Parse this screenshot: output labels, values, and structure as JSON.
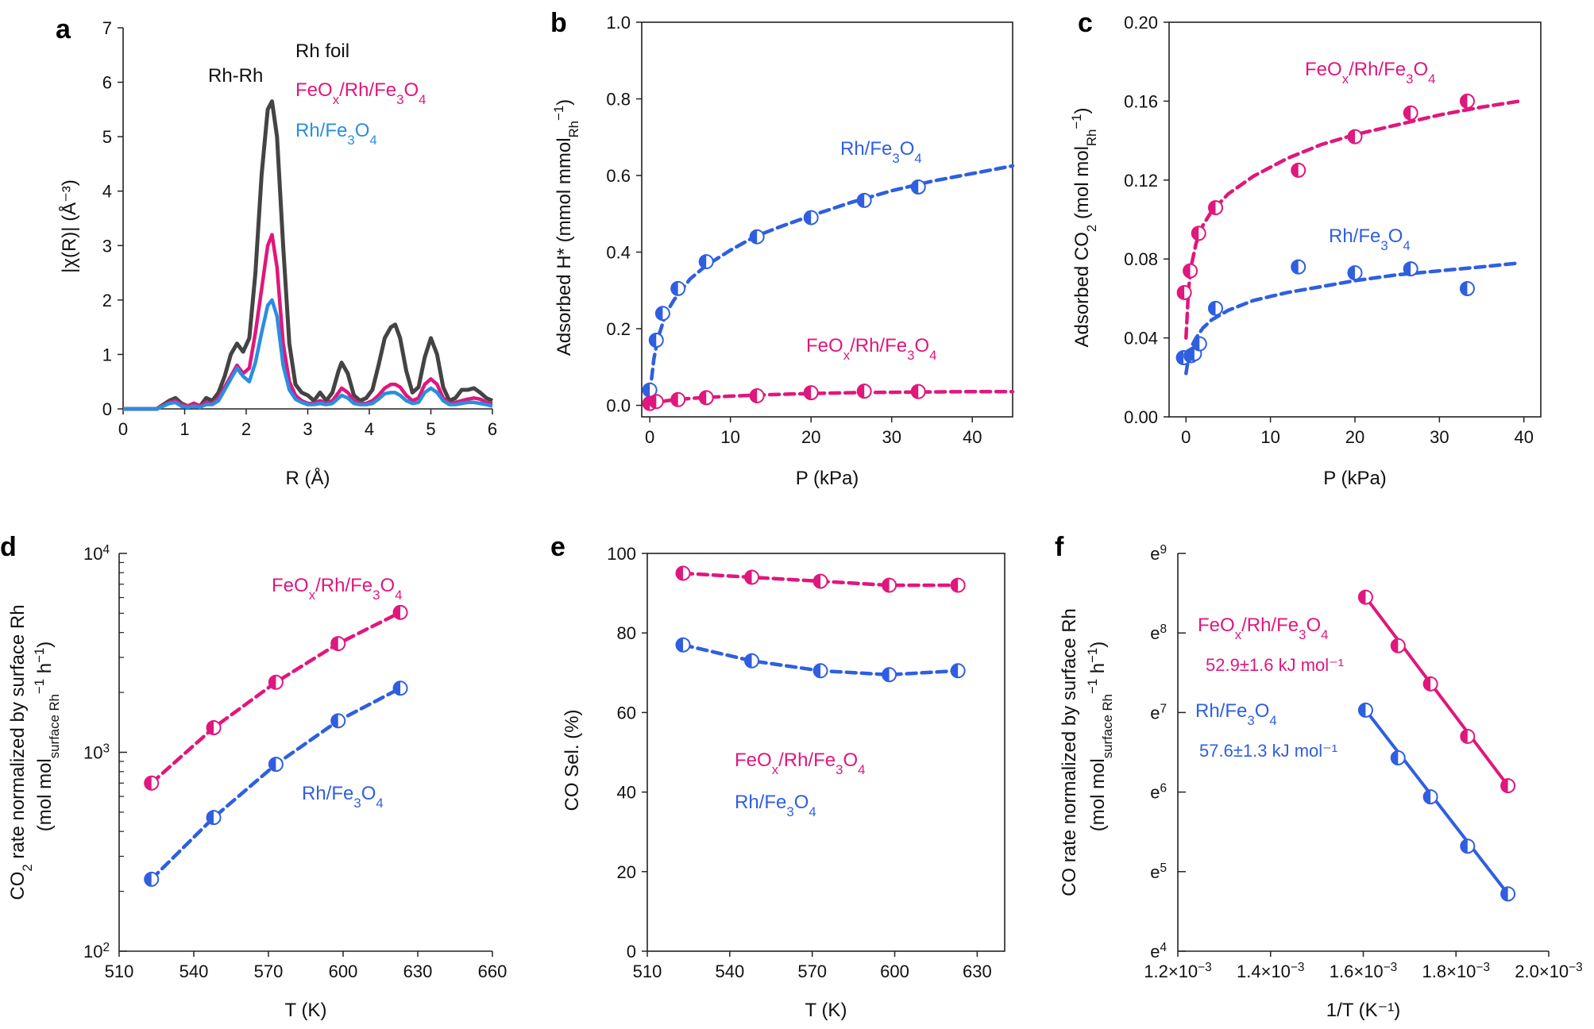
{
  "colors": {
    "pink": "#e0177c",
    "blue": "#2f5fe0",
    "lightblue": "#2a8ee0",
    "gray": "#444444"
  },
  "chart_data": [
    {
      "panel": "a",
      "type": "line",
      "xlabel": "R (Å)",
      "ylabel": "|χ(R)| (Å⁻³)",
      "xlim": [
        0,
        6
      ],
      "ylim": [
        0,
        7
      ],
      "xticks": [
        "0",
        "1",
        "2",
        "3",
        "4",
        "5",
        "6"
      ],
      "yticks": [
        "0",
        "1",
        "2",
        "3",
        "4",
        "5",
        "6",
        "7"
      ],
      "annotations": [
        {
          "text": "Rh-Rh"
        }
      ],
      "series": [
        {
          "name": "Rh foil",
          "color": "#444444",
          "x": [
            0,
            0.55,
            0.75,
            0.85,
            0.95,
            1.05,
            1.15,
            1.25,
            1.35,
            1.45,
            1.55,
            1.65,
            1.75,
            1.85,
            1.95,
            2.05,
            2.15,
            2.25,
            2.35,
            2.42,
            2.5,
            2.6,
            2.7,
            2.8,
            2.9,
            3.0,
            3.1,
            3.2,
            3.3,
            3.4,
            3.5,
            3.55,
            3.65,
            3.75,
            3.85,
            3.95,
            4.05,
            4.15,
            4.25,
            4.35,
            4.42,
            4.5,
            4.6,
            4.7,
            4.8,
            4.9,
            5.0,
            5.1,
            5.2,
            5.3,
            5.4,
            5.5,
            5.6,
            5.7,
            5.8,
            5.9,
            6.0
          ],
          "y": [
            0,
            0,
            0.15,
            0.2,
            0.1,
            0.05,
            0.1,
            0.05,
            0.2,
            0.15,
            0.3,
            0.6,
            1.0,
            1.2,
            1.05,
            1.3,
            2.5,
            4.3,
            5.5,
            5.65,
            5.0,
            3.0,
            1.2,
            0.45,
            0.3,
            0.25,
            0.15,
            0.3,
            0.15,
            0.3,
            0.7,
            0.85,
            0.65,
            0.25,
            0.15,
            0.2,
            0.35,
            0.8,
            1.3,
            1.5,
            1.55,
            1.3,
            0.7,
            0.3,
            0.4,
            0.95,
            1.3,
            1.0,
            0.4,
            0.15,
            0.2,
            0.35,
            0.35,
            0.38,
            0.3,
            0.2,
            0.15
          ]
        },
        {
          "name": "FeOx/Rh/Fe3O4",
          "color": "#e0177c",
          "x": [
            0,
            0.55,
            0.75,
            0.85,
            0.95,
            1.05,
            1.15,
            1.25,
            1.35,
            1.45,
            1.55,
            1.65,
            1.75,
            1.85,
            1.95,
            2.05,
            2.15,
            2.25,
            2.35,
            2.42,
            2.5,
            2.6,
            2.7,
            2.8,
            2.9,
            3.0,
            3.1,
            3.2,
            3.3,
            3.4,
            3.5,
            3.55,
            3.65,
            3.75,
            3.85,
            3.95,
            4.05,
            4.15,
            4.25,
            4.35,
            4.42,
            4.5,
            4.6,
            4.7,
            4.8,
            4.9,
            5.0,
            5.1,
            5.2,
            5.3,
            5.4,
            5.5,
            5.6,
            5.7,
            5.8,
            5.9,
            6.0
          ],
          "y": [
            0,
            0,
            0.12,
            0.15,
            0.08,
            0.05,
            0.1,
            0.05,
            0.12,
            0.1,
            0.2,
            0.4,
            0.6,
            0.8,
            0.65,
            0.75,
            1.4,
            2.2,
            3.0,
            3.2,
            2.6,
            1.2,
            0.5,
            0.25,
            0.15,
            0.1,
            0.1,
            0.15,
            0.1,
            0.15,
            0.3,
            0.38,
            0.3,
            0.15,
            0.1,
            0.1,
            0.15,
            0.25,
            0.38,
            0.45,
            0.45,
            0.4,
            0.25,
            0.15,
            0.2,
            0.45,
            0.55,
            0.45,
            0.2,
            0.1,
            0.12,
            0.15,
            0.18,
            0.2,
            0.18,
            0.12,
            0.1
          ]
        },
        {
          "name": "Rh/Fe3O4",
          "color": "#2a8ee0",
          "x": [
            0,
            0.55,
            0.75,
            0.85,
            0.95,
            1.05,
            1.15,
            1.25,
            1.35,
            1.45,
            1.55,
            1.65,
            1.75,
            1.85,
            1.95,
            2.05,
            2.15,
            2.25,
            2.35,
            2.42,
            2.5,
            2.6,
            2.7,
            2.8,
            2.9,
            3.0,
            3.1,
            3.2,
            3.3,
            3.4,
            3.5,
            3.55,
            3.65,
            3.75,
            3.85,
            3.95,
            4.05,
            4.15,
            4.25,
            4.35,
            4.42,
            4.5,
            4.6,
            4.7,
            4.8,
            4.9,
            5.0,
            5.1,
            5.2,
            5.3,
            5.4,
            5.5,
            5.6,
            5.7,
            5.8,
            5.9,
            6.0
          ],
          "y": [
            0,
            0,
            0.1,
            0.12,
            0.05,
            0.03,
            0.05,
            0.03,
            0.08,
            0.08,
            0.15,
            0.35,
            0.55,
            0.75,
            0.6,
            0.5,
            0.85,
            1.4,
            1.9,
            2.0,
            1.7,
            0.8,
            0.35,
            0.18,
            0.12,
            0.08,
            0.08,
            0.1,
            0.08,
            0.1,
            0.2,
            0.25,
            0.2,
            0.1,
            0.08,
            0.08,
            0.1,
            0.18,
            0.28,
            0.3,
            0.3,
            0.25,
            0.15,
            0.1,
            0.12,
            0.3,
            0.38,
            0.3,
            0.15,
            0.08,
            0.08,
            0.1,
            0.12,
            0.12,
            0.1,
            0.08,
            0.05
          ]
        }
      ]
    },
    {
      "panel": "b",
      "type": "scatter",
      "xlabel": "P (kPa)",
      "ylabel": "Adsorbed H* (mmol mmol",
      "ylabel_sub": "Rh",
      "ylabel_end": "−1",
      "xlim": [
        -1,
        45
      ],
      "ylim": [
        0,
        1.0
      ],
      "xticks": [
        "0",
        "10",
        "20",
        "30",
        "40"
      ],
      "yticks": [
        "0.0",
        "0.2",
        "0.4",
        "0.6",
        "0.8",
        "1.0"
      ],
      "series": [
        {
          "name": "Rh/Fe3O4",
          "color": "#2f5fe0",
          "x": [
            0,
            0.8,
            1.6,
            3.5,
            7,
            13.3,
            20,
            26.6,
            33.3
          ],
          "y": [
            0.04,
            0.17,
            0.24,
            0.305,
            0.375,
            0.44,
            0.49,
            0.535,
            0.57
          ],
          "fit_x": [
            0,
            0.5,
            1,
            2,
            3,
            5,
            7,
            10,
            13,
            16,
            20,
            25,
            30,
            35,
            40,
            45
          ],
          "fit_y": [
            0.03,
            0.12,
            0.175,
            0.24,
            0.275,
            0.33,
            0.365,
            0.405,
            0.44,
            0.465,
            0.495,
            0.53,
            0.56,
            0.585,
            0.605,
            0.625
          ]
        },
        {
          "name": "FeOx/Rh/Fe3O4",
          "color": "#e0177c",
          "x": [
            0,
            0.8,
            3.5,
            7,
            13.3,
            20,
            26.6,
            33.3
          ],
          "y": [
            0.005,
            0.01,
            0.015,
            0.02,
            0.025,
            0.033,
            0.037,
            0.036
          ],
          "fit_x": [
            0,
            2,
            5,
            10,
            15,
            20,
            25,
            30,
            35,
            40,
            45
          ],
          "fit_y": [
            0.0,
            0.012,
            0.018,
            0.024,
            0.028,
            0.031,
            0.033,
            0.034,
            0.035,
            0.036,
            0.036
          ]
        }
      ]
    },
    {
      "panel": "c",
      "type": "scatter",
      "xlabel": "P (kPa)",
      "ylabel": "Adsorbed CO",
      "ylabel_sub": "2",
      "ylabel_mid": " (mol mol",
      "ylabel_sub2": "Rh",
      "ylabel_end": "−1",
      "xlim": [
        -2,
        42
      ],
      "ylim": [
        0,
        0.2
      ],
      "xticks": [
        "0",
        "10",
        "20",
        "30",
        "40"
      ],
      "yticks": [
        "0.00",
        "0.04",
        "0.08",
        "0.12",
        "0.16",
        "0.20"
      ],
      "series": [
        {
          "name": "FeOx/Rh/Fe3O4",
          "color": "#e0177c",
          "x": [
            -0.2,
            0.5,
            1.5,
            3.5,
            13.3,
            20,
            26.6,
            33.3
          ],
          "y": [
            0.063,
            0.074,
            0.093,
            0.106,
            0.125,
            0.142,
            0.154,
            0.16
          ],
          "fit_x": [
            0,
            0.3,
            0.7,
            1.2,
            2,
            3,
            5,
            8,
            12,
            16,
            20,
            25,
            30,
            35,
            39.5
          ],
          "fit_y": [
            0.04,
            0.065,
            0.078,
            0.088,
            0.097,
            0.104,
            0.113,
            0.122,
            0.131,
            0.138,
            0.143,
            0.148,
            0.153,
            0.157,
            0.16
          ]
        },
        {
          "name": "Rh/Fe3O4",
          "color": "#2f5fe0",
          "x": [
            -0.3,
            0.6,
            1.0,
            1.6,
            3.5,
            13.3,
            20,
            26.6,
            33.3
          ],
          "y": [
            0.03,
            0.031,
            0.032,
            0.037,
            0.055,
            0.076,
            0.073,
            0.075,
            0.065
          ],
          "fit_x": [
            0,
            0.3,
            0.7,
            1.2,
            2,
            3,
            5,
            8,
            12,
            16,
            20,
            25,
            30,
            35,
            39.5
          ],
          "fit_y": [
            0.022,
            0.03,
            0.036,
            0.04,
            0.045,
            0.049,
            0.054,
            0.059,
            0.063,
            0.066,
            0.069,
            0.072,
            0.074,
            0.076,
            0.078
          ]
        }
      ]
    },
    {
      "panel": "d",
      "type": "line",
      "xlabel": "T (K)",
      "ylabel": "CO",
      "ylabel_sub": "2",
      "ylabel_mid": " rate normalized by surface Rh",
      "ylabel2": "(mol mol",
      "ylabel2_sub": "surface Rh",
      "ylabel2_sup": "−1",
      "ylabel2_end": " h",
      "ylabel2_sup2": "−1",
      "ylabel2_close": ")",
      "yscale": "log",
      "xlim": [
        510,
        660
      ],
      "ylim": [
        100,
        10000
      ],
      "xticks": [
        "510",
        "540",
        "570",
        "600",
        "630",
        "660"
      ],
      "yticks": [
        {
          "base": "10",
          "exp": "2"
        },
        {
          "base": "10",
          "exp": "3"
        },
        {
          "base": "10",
          "exp": "4"
        }
      ],
      "series": [
        {
          "name": "FeOx/Rh/Fe3O4",
          "color": "#e0177c",
          "x": [
            523,
            548,
            573,
            598,
            623
          ],
          "y": [
            700,
            1330,
            2250,
            3520,
            5050
          ]
        },
        {
          "name": "Rh/Fe3O4",
          "color": "#2f5fe0",
          "x": [
            523,
            548,
            573,
            598,
            623
          ],
          "y": [
            230,
            470,
            870,
            1440,
            2100
          ]
        }
      ]
    },
    {
      "panel": "e",
      "type": "line",
      "xlabel": "T (K)",
      "ylabel": "CO Sel. (%)",
      "xlim": [
        510,
        640
      ],
      "ylim": [
        0,
        100
      ],
      "xticks": [
        "510",
        "540",
        "570",
        "600",
        "630"
      ],
      "yticks": [
        "0",
        "20",
        "40",
        "60",
        "80",
        "100"
      ],
      "series": [
        {
          "name": "FeOx/Rh/Fe3O4",
          "color": "#e0177c",
          "x": [
            523,
            548,
            573,
            598,
            623
          ],
          "y": [
            95,
            94,
            93,
            92,
            92
          ]
        },
        {
          "name": "Rh/Fe3O4",
          "color": "#2f5fe0",
          "x": [
            523,
            548,
            573,
            598,
            623
          ],
          "y": [
            77,
            73,
            70.5,
            69.5,
            70.5
          ]
        }
      ]
    },
    {
      "panel": "f",
      "type": "scatter",
      "xlabel": "1/T (K⁻¹)",
      "ylabel": "CO rate normalized by surface Rh",
      "ylabel2": "(mol mol",
      "ylabel2_sub": "surface Rh",
      "ylabel2_sup": "−1",
      "ylabel2_end": " h",
      "ylabel2_sup2": "−1",
      "ylabel2_close": ")",
      "yscale": "ln",
      "xlim": [
        0.0012,
        0.002
      ],
      "ylim": [
        4,
        9
      ],
      "xticks": [
        {
          "mant": "1.2",
          "exp": "−3"
        },
        {
          "mant": "1.4",
          "exp": "−3"
        },
        {
          "mant": "1.6",
          "exp": "−3"
        },
        {
          "mant": "1.8",
          "exp": "−3"
        },
        {
          "mant": "2.0",
          "exp": "−3"
        }
      ],
      "yticks": [
        {
          "base": "e",
          "exp": "4"
        },
        {
          "base": "e",
          "exp": "5"
        },
        {
          "base": "e",
          "exp": "6"
        },
        {
          "base": "e",
          "exp": "7"
        },
        {
          "base": "e",
          "exp": "8"
        },
        {
          "base": "e",
          "exp": "9"
        }
      ],
      "series": [
        {
          "name": "FeOx/Rh/Fe3O4",
          "color": "#e0177c",
          "energy": "52.9±1.6 kJ mol⁻¹",
          "x": [
            0.001605,
            0.001675,
            0.001745,
            0.001825,
            0.001912
          ],
          "y": [
            8.45,
            7.84,
            7.36,
            6.7,
            6.08
          ]
        },
        {
          "name": "Rh/Fe3O4",
          "color": "#2f5fe0",
          "energy": "57.6±1.3 kJ mol⁻¹",
          "x": [
            0.001605,
            0.001675,
            0.001745,
            0.001825,
            0.001912
          ],
          "y": [
            7.03,
            6.43,
            5.94,
            5.32,
            4.72
          ]
        }
      ]
    }
  ]
}
